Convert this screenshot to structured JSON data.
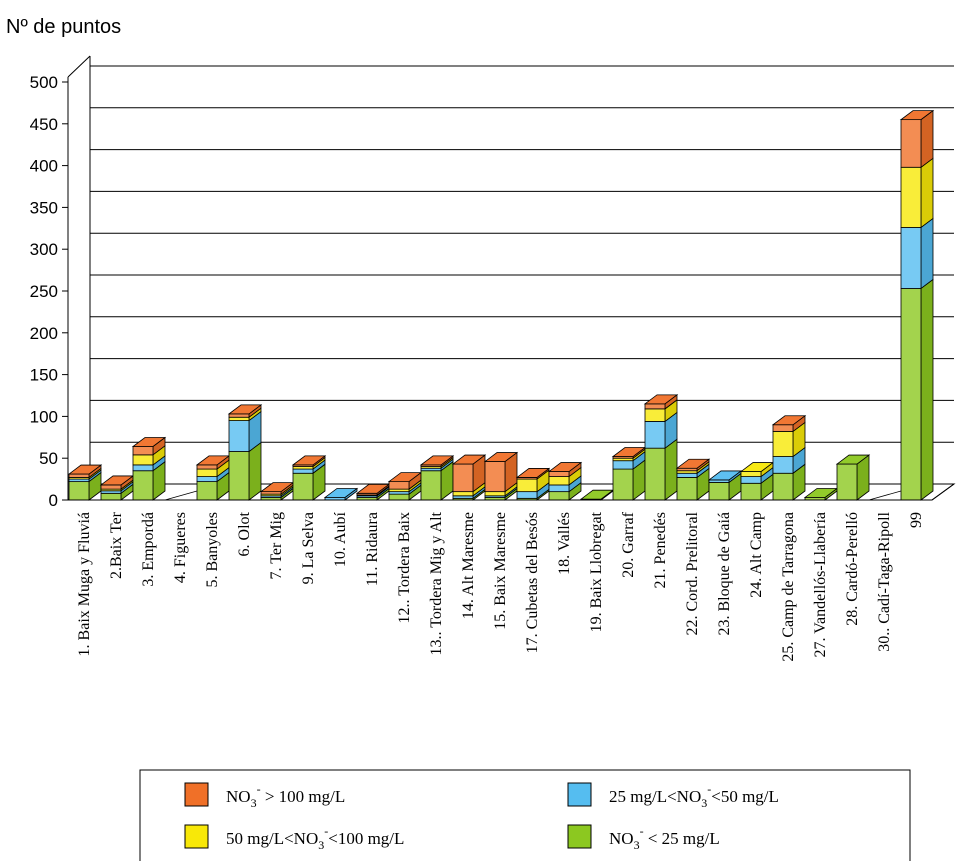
{
  "chart_data": {
    "type": "bar",
    "stacked": true,
    "three_d": true,
    "title": "",
    "ylabel": "Nº de puntos",
    "xlabel": "",
    "ylim": [
      0,
      500
    ],
    "yticks": [
      0,
      50,
      100,
      150,
      200,
      250,
      300,
      350,
      400,
      450,
      500
    ],
    "grid": true,
    "legend_position": "bottom",
    "categories": [
      "1. Baix Muga y Fluviá",
      "2.Baix Ter",
      "3. Empordá",
      "4. Figueres",
      "5. Banyoles",
      "6. Olot",
      "7. Ter Mig",
      "9. La Selva",
      "10. Aubí",
      "11. Ridaura",
      "12.. Tordera Baix",
      "13.. Tordera Mig y Alt",
      "14. Alt Maresme",
      "15. Baix Maresme",
      "17. Cubetas del Besós",
      "18. Vallés",
      "19. Baix Llobregat",
      "20. Garraf",
      "21. Penedés",
      "22. Cord. Prelitoral",
      "23. Bloque de Gaiá",
      "24. Alt Camp",
      "25. Camp de Tarragona",
      "27. Vandellós-Llabería",
      "28. Cardó-Perelló",
      "30.. Cadí-Taga-Ripoll",
      "99"
    ],
    "series": [
      {
        "name": "NO3- < 25 mg/L",
        "color": "#8cc820",
        "values": [
          22,
          8,
          35,
          0,
          22,
          58,
          3,
          32,
          0,
          3,
          7,
          35,
          2,
          3,
          2,
          10,
          1,
          37,
          62,
          27,
          21,
          20,
          32,
          3,
          43,
          0,
          253
        ]
      },
      {
        "name": "25 mg/L<NO3-<50 mg/L",
        "color": "#55bdf0",
        "values": [
          3,
          3,
          7,
          0,
          6,
          37,
          2,
          5,
          3,
          2,
          3,
          3,
          3,
          2,
          8,
          8,
          0,
          10,
          32,
          5,
          3,
          8,
          20,
          0,
          0,
          0,
          73
        ]
      },
      {
        "name": "50 mg/L<NO3-<100 mg/L",
        "color": "#f8e808",
        "values": [
          2,
          2,
          12,
          0,
          9,
          4,
          2,
          3,
          0,
          1,
          3,
          2,
          5,
          5,
          15,
          10,
          0,
          3,
          15,
          3,
          0,
          6,
          30,
          0,
          0,
          0,
          72
        ]
      },
      {
        "name": "NO3- > 100 mg/L",
        "color": "#f07028",
        "values": [
          4,
          5,
          10,
          0,
          5,
          4,
          3,
          2,
          0,
          2,
          9,
          2,
          33,
          36,
          2,
          6,
          0,
          2,
          6,
          3,
          0,
          0,
          8,
          0,
          0,
          0,
          57
        ]
      }
    ]
  },
  "legend": {
    "items": [
      {
        "prefix": "NO",
        "sub": "3",
        "sup": "-",
        "suffix": " > 100 mg/L",
        "color": "#f07028"
      },
      {
        "prefix": "25 mg/L<NO",
        "sub": "3",
        "sup": "-",
        "suffix": "<50 mg/L",
        "color": "#55bdf0"
      },
      {
        "prefix": "50 mg/L<NO",
        "sub": "3",
        "sup": "-",
        "suffix": "<100 mg/L",
        "color": "#f8e808"
      },
      {
        "prefix": "NO",
        "sub": "3",
        "sup": "-",
        "suffix": " < 25 mg/L",
        "color": "#8cc820"
      }
    ]
  }
}
